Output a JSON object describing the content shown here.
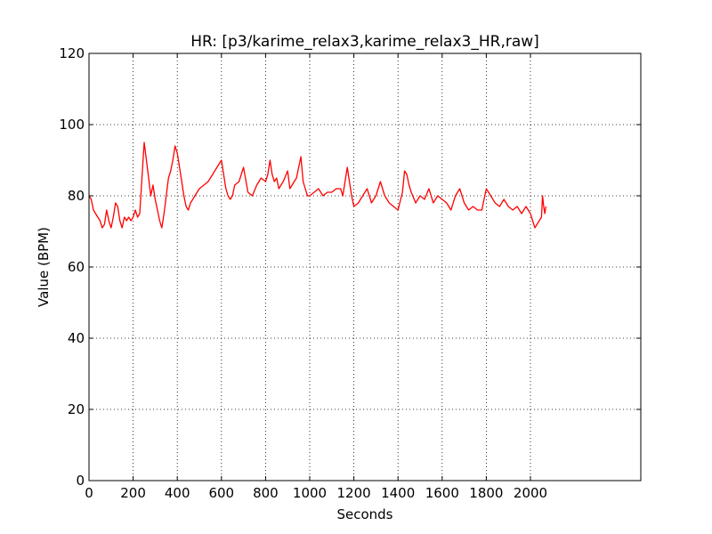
{
  "chart_data": {
    "type": "line",
    "title": "HR: [p3/karime_relax3,karime_relax3_HR,raw]",
    "xlabel": "Seconds",
    "ylabel": "Value (BPM)",
    "xlim": [
      0,
      2500
    ],
    "ylim": [
      0,
      120
    ],
    "xticks": [
      0,
      200,
      400,
      600,
      800,
      1000,
      1200,
      1400,
      1600,
      1800,
      2000
    ],
    "yticks": [
      0,
      20,
      40,
      60,
      80,
      100,
      120
    ],
    "grid": true,
    "series": [
      {
        "color": "#ff0000",
        "x": [
          0,
          10,
          20,
          30,
          40,
          50,
          60,
          70,
          80,
          90,
          100,
          110,
          120,
          130,
          140,
          150,
          160,
          170,
          180,
          190,
          200,
          210,
          220,
          230,
          240,
          250,
          260,
          270,
          280,
          290,
          300,
          310,
          320,
          330,
          340,
          350,
          360,
          370,
          380,
          390,
          400,
          410,
          420,
          430,
          440,
          450,
          460,
          470,
          480,
          490,
          500,
          520,
          540,
          560,
          580,
          600,
          610,
          620,
          630,
          640,
          650,
          660,
          680,
          700,
          720,
          740,
          760,
          780,
          800,
          810,
          820,
          830,
          840,
          850,
          860,
          880,
          900,
          910,
          920,
          930,
          940,
          950,
          960,
          970,
          980,
          990,
          1000,
          1020,
          1040,
          1060,
          1080,
          1100,
          1120,
          1140,
          1150,
          1160,
          1170,
          1180,
          1190,
          1200,
          1220,
          1240,
          1260,
          1280,
          1300,
          1320,
          1340,
          1360,
          1380,
          1400,
          1420,
          1430,
          1440,
          1450,
          1460,
          1480,
          1500,
          1520,
          1540,
          1560,
          1580,
          1600,
          1620,
          1640,
          1660,
          1680,
          1700,
          1720,
          1740,
          1760,
          1780,
          1800,
          1820,
          1840,
          1860,
          1880,
          1900,
          1920,
          1940,
          1960,
          1980,
          1990,
          2000,
          2010,
          2020,
          2030,
          2040,
          2050,
          2055,
          2060,
          2065,
          2070
        ],
        "y": [
          80,
          79,
          76,
          75,
          74,
          73,
          71,
          72,
          76,
          73,
          71,
          74,
          78,
          77,
          73,
          71,
          74,
          73,
          74,
          73,
          74,
          76,
          74,
          75,
          85,
          95,
          90,
          85,
          80,
          83,
          79,
          76,
          73,
          71,
          75,
          80,
          85,
          87,
          90,
          94,
          92,
          88,
          84,
          80,
          77,
          76,
          78,
          79,
          80,
          81,
          82,
          83,
          84,
          86,
          88,
          90,
          86,
          82,
          80,
          79,
          80,
          83,
          84,
          88,
          81,
          80,
          83,
          85,
          84,
          86,
          90,
          86,
          84,
          85,
          82,
          84,
          87,
          82,
          83,
          84,
          85,
          88,
          91,
          84,
          82,
          80,
          80,
          81,
          82,
          80,
          81,
          81,
          82,
          82,
          80,
          84,
          88,
          84,
          80,
          77,
          78,
          80,
          82,
          78,
          80,
          84,
          80,
          78,
          77,
          76,
          81,
          87,
          86,
          83,
          81,
          78,
          80,
          79,
          82,
          78,
          80,
          79,
          78,
          76,
          80,
          82,
          78,
          76,
          77,
          76,
          76,
          82,
          80,
          78,
          77,
          79,
          77,
          76,
          77,
          75,
          77,
          76,
          75,
          73,
          71,
          72,
          73,
          74,
          80,
          77,
          75,
          77
        ]
      }
    ]
  }
}
